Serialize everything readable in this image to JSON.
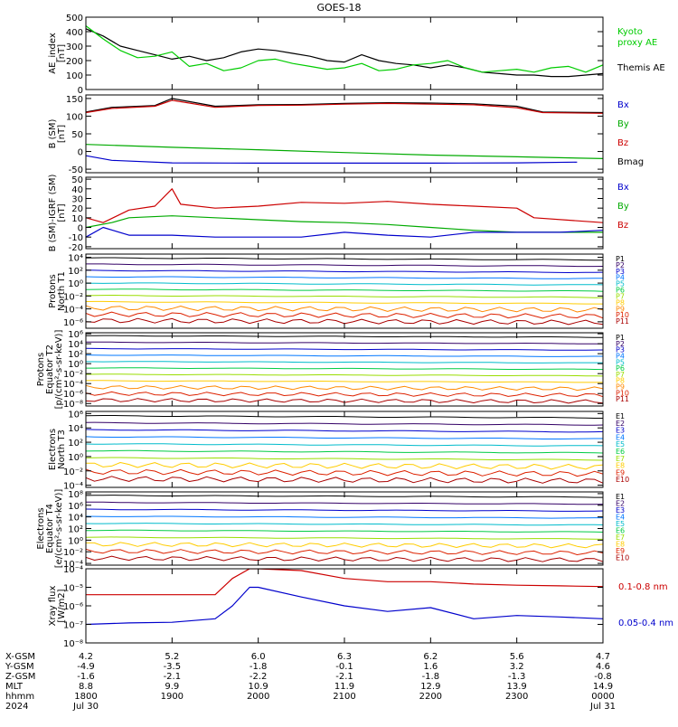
{
  "title": "GOES-18",
  "panels": [
    {
      "id": "ae",
      "ylabel": [
        "AE_index",
        "[nT]"
      ],
      "yticks": [
        "500",
        "400",
        "300",
        "200",
        "100",
        "0"
      ],
      "ymin": 0,
      "ymax": 500,
      "log": false,
      "legend": [
        {
          "text": "Kyoto",
          "color": "#00cc00"
        },
        {
          "text": "proxy AE",
          "color": "#00cc00"
        },
        {
          "text": "Themis AE",
          "color": "#000000"
        }
      ]
    },
    {
      "id": "bsm",
      "ylabel": [
        "B (SM)",
        "[nT]"
      ],
      "yticks": [
        "150",
        "100",
        "50",
        "0",
        "-50"
      ],
      "ymin": -60,
      "ymax": 160,
      "log": false,
      "legend": [
        {
          "text": "Bx",
          "color": "#0000cc"
        },
        {
          "text": "By",
          "color": "#00aa00"
        },
        {
          "text": "Bz",
          "color": "#cc0000"
        },
        {
          "text": "Bmag",
          "color": "#000000"
        }
      ]
    },
    {
      "id": "bigrf",
      "ylabel": [
        "B (SM)-IGRF (SM)",
        "[nT]"
      ],
      "yticks": [
        "50",
        "40",
        "30",
        "20",
        "10",
        "0",
        "-10",
        "-20"
      ],
      "ymin": -22,
      "ymax": 52,
      "log": false,
      "legend": [
        {
          "text": "Bx",
          "color": "#0000cc"
        },
        {
          "text": "By",
          "color": "#00aa00"
        },
        {
          "text": "Bz",
          "color": "#cc0000"
        }
      ]
    },
    {
      "id": "pn",
      "ylabel": [
        "Protons",
        "North T1"
      ],
      "yticks": [
        "10⁴",
        "10²",
        "10⁰",
        "10⁻²",
        "10⁻⁴",
        "10⁻⁶"
      ],
      "ymin": -7,
      "ymax": 4.5,
      "log": true,
      "legend": [
        {
          "text": "P1",
          "color": "#000000"
        },
        {
          "text": "P2",
          "color": "#330066"
        },
        {
          "text": "P3",
          "color": "#0000cc"
        },
        {
          "text": "P4",
          "color": "#0077ff"
        },
        {
          "text": "P5",
          "color": "#00bbcc"
        },
        {
          "text": "P6",
          "color": "#00cc44"
        },
        {
          "text": "P7",
          "color": "#99dd00"
        },
        {
          "text": "P8",
          "color": "#ffcc00"
        },
        {
          "text": "P9",
          "color": "#ff8800"
        },
        {
          "text": "P10",
          "color": "#dd2200"
        },
        {
          "text": "P11",
          "color": "#aa0000"
        }
      ]
    },
    {
      "id": "pe",
      "ylabel": [
        "Protons",
        "Equator T2",
        "[p/(cm²-s-sr-keV)]"
      ],
      "yticks": [
        "10⁶",
        "10⁴",
        "10²",
        "10⁰",
        "10⁻²",
        "10⁻⁴",
        "10⁻⁶",
        "10⁻⁸"
      ],
      "ymin": -8.5,
      "ymax": 6.2,
      "log": true,
      "legend": [
        {
          "text": "P1",
          "color": "#000000"
        },
        {
          "text": "P2",
          "color": "#330066"
        },
        {
          "text": "P3",
          "color": "#0000cc"
        },
        {
          "text": "P4",
          "color": "#0077ff"
        },
        {
          "text": "P5",
          "color": "#00bbcc"
        },
        {
          "text": "P6",
          "color": "#00cc44"
        },
        {
          "text": "P7",
          "color": "#99dd00"
        },
        {
          "text": "P8",
          "color": "#ffcc00"
        },
        {
          "text": "P9",
          "color": "#ff8800"
        },
        {
          "text": "P10",
          "color": "#dd2200"
        },
        {
          "text": "P11",
          "color": "#aa0000"
        }
      ]
    },
    {
      "id": "en",
      "ylabel": [
        "Electrons",
        "North T3"
      ],
      "yticks": [
        "10⁶",
        "10⁴",
        "10²",
        "10⁰",
        "10⁻²",
        "10⁻⁴"
      ],
      "ymin": -4.3,
      "ymax": 6.3,
      "log": true,
      "legend": [
        {
          "text": "E1",
          "color": "#000000"
        },
        {
          "text": "E2",
          "color": "#330066"
        },
        {
          "text": "E3",
          "color": "#0000cc"
        },
        {
          "text": "E4",
          "color": "#0077ff"
        },
        {
          "text": "E5",
          "color": "#00bbcc"
        },
        {
          "text": "E6",
          "color": "#00cc44"
        },
        {
          "text": "E7",
          "color": "#99dd00"
        },
        {
          "text": "E8",
          "color": "#ffcc00"
        },
        {
          "text": "E9",
          "color": "#dd2200"
        },
        {
          "text": "E10",
          "color": "#aa0000"
        }
      ]
    },
    {
      "id": "ee",
      "ylabel": [
        "Electrons",
        "Equator T4",
        "[e/(cm²-s-sr-keV)]"
      ],
      "yticks": [
        "10⁸",
        "10⁶",
        "10⁴",
        "10²",
        "10⁰",
        "10⁻²",
        "10⁻⁴"
      ],
      "ymin": -4.3,
      "ymax": 8.3,
      "log": true,
      "legend": [
        {
          "text": "E1",
          "color": "#000000"
        },
        {
          "text": "E2",
          "color": "#330066"
        },
        {
          "text": "E3",
          "color": "#0000cc"
        },
        {
          "text": "E4",
          "color": "#0077ff"
        },
        {
          "text": "E5",
          "color": "#00bbcc"
        },
        {
          "text": "E6",
          "color": "#00cc44"
        },
        {
          "text": "E7",
          "color": "#99dd00"
        },
        {
          "text": "E8",
          "color": "#ffcc00"
        },
        {
          "text": "E9",
          "color": "#dd2200"
        },
        {
          "text": "E10",
          "color": "#aa0000"
        }
      ]
    },
    {
      "id": "xray",
      "ylabel": [
        "Xray flux",
        "[W/m2]"
      ],
      "yticks": [
        "10⁻⁴",
        "10⁻⁵",
        "10⁻⁶",
        "10⁻⁷",
        "10⁻⁸"
      ],
      "ymin": -8,
      "ymax": -4,
      "log": true,
      "legend": [
        {
          "text": "0.1-0.8 nm",
          "color": "#cc0000"
        },
        {
          "text": "0.05-0.4 nm",
          "color": "#0000cc"
        }
      ]
    }
  ],
  "x_axis": {
    "row_labels": [
      "X-GSM",
      "Y-GSM",
      "Z-GSM",
      "MLT",
      "hhmm",
      "2024"
    ],
    "columns": [
      {
        "values": [
          "4.2",
          "-4.9",
          "-1.6",
          "8.8",
          "1800",
          "Jul 30"
        ]
      },
      {
        "values": [
          "5.2",
          "-3.5",
          "-2.1",
          "9.9",
          "1900",
          ""
        ]
      },
      {
        "values": [
          "6.0",
          "-1.8",
          "-2.2",
          "10.9",
          "2000",
          ""
        ]
      },
      {
        "values": [
          "6.3",
          "-0.1",
          "-2.1",
          "11.9",
          "2100",
          ""
        ]
      },
      {
        "values": [
          "6.2",
          "1.6",
          "-1.8",
          "12.9",
          "2200",
          ""
        ]
      },
      {
        "values": [
          "5.6",
          "3.2",
          "-1.3",
          "13.9",
          "2300",
          ""
        ]
      },
      {
        "values": [
          "4.7",
          "4.6",
          "-0.8",
          "14.9",
          "0000",
          "Jul 31"
        ]
      }
    ]
  },
  "chart_data": {
    "type": "line",
    "title": "GOES-18",
    "x_unit": "UT hours, 2024 Jul 30",
    "x_range": [
      18,
      24
    ],
    "panels": [
      {
        "name": "AE index [nT]",
        "series": [
          {
            "name": "Themis AE",
            "color": "#000000",
            "x": [
              18.0,
              18.2,
              18.4,
              18.6,
              18.8,
              19.0,
              19.2,
              19.4,
              19.6,
              19.8,
              20.0,
              20.2,
              20.4,
              20.6,
              20.8,
              21.0,
              21.2,
              21.4,
              21.6,
              21.8,
              22.0,
              22.2,
              22.4,
              22.6,
              22.8,
              23.0,
              23.2,
              23.4,
              23.6,
              23.8,
              24.0
            ],
            "y": [
              420,
              370,
              300,
              270,
              240,
              210,
              230,
              200,
              220,
              260,
              280,
              270,
              250,
              230,
              200,
              190,
              240,
              200,
              180,
              170,
              150,
              170,
              150,
              120,
              110,
              100,
              100,
              90,
              90,
              100,
              110
            ]
          },
          {
            "name": "Kyoto proxy AE",
            "color": "#00cc00",
            "x": [
              18.0,
              18.2,
              18.4,
              18.6,
              18.8,
              19.0,
              19.2,
              19.4,
              19.6,
              19.8,
              20.0,
              20.2,
              20.4,
              20.6,
              20.8,
              21.0,
              21.2,
              21.4,
              21.6,
              21.8,
              22.0,
              22.2,
              22.4,
              22.6,
              22.8,
              23.0,
              23.2,
              23.4,
              23.6,
              23.8,
              24.0
            ],
            "y": [
              440,
              350,
              270,
              220,
              230,
              260,
              160,
              180,
              130,
              150,
              200,
              210,
              180,
              160,
              140,
              150,
              180,
              130,
              140,
              170,
              180,
              200,
              150,
              120,
              130,
              140,
              120,
              150,
              160,
              120,
              170
            ]
          }
        ]
      },
      {
        "name": "B (SM) [nT]",
        "series": [
          {
            "name": "Bmag",
            "color": "#000000",
            "x": [
              18.0,
              18.3,
              18.8,
              19.0,
              19.5,
              20.0,
              20.5,
              21.0,
              21.5,
              22.0,
              22.5,
              23.0,
              23.3,
              24.0
            ],
            "y": [
              112,
              125,
              130,
              150,
              128,
              132,
              133,
              136,
              138,
              137,
              135,
              128,
              112,
              110
            ]
          },
          {
            "name": "Bz",
            "color": "#cc0000",
            "x": [
              18.0,
              18.3,
              18.8,
              19.0,
              19.5,
              20.0,
              20.5,
              21.0,
              21.5,
              22.0,
              22.5,
              23.0,
              23.3,
              24.0
            ],
            "y": [
              110,
              122,
              128,
              145,
              125,
              130,
              131,
              134,
              136,
              134,
              132,
              124,
              110,
              108
            ]
          },
          {
            "name": "By",
            "color": "#00aa00",
            "x": [
              18.0,
              19.0,
              20.0,
              21.0,
              22.0,
              23.0,
              24.0
            ],
            "y": [
              20,
              12,
              5,
              -3,
              -10,
              -15,
              -20
            ]
          },
          {
            "name": "Bx",
            "color": "#0000cc",
            "x": [
              18.0,
              18.3,
              19.0,
              20.0,
              21.0,
              22.0,
              23.0,
              23.7
            ],
            "y": [
              -12,
              -25,
              -32,
              -33,
              -33,
              -33,
              -32,
              -30
            ]
          }
        ]
      },
      {
        "name": "B (SM)-IGRF (SM) [nT]",
        "series": [
          {
            "name": "Bz",
            "color": "#cc0000",
            "x": [
              18.0,
              18.2,
              18.5,
              18.8,
              19.0,
              19.1,
              19.5,
              20.0,
              20.5,
              21.0,
              21.5,
              22.0,
              22.5,
              23.0,
              23.2,
              24.0
            ],
            "y": [
              10,
              5,
              18,
              22,
              40,
              24,
              20,
              22,
              26,
              25,
              27,
              24,
              22,
              20,
              10,
              5
            ]
          },
          {
            "name": "By",
            "color": "#00aa00",
            "x": [
              18.0,
              18.3,
              18.5,
              19.0,
              19.5,
              20.0,
              20.5,
              21.0,
              21.5,
              22.0,
              22.5,
              23.0,
              23.5,
              24.0
            ],
            "y": [
              0,
              5,
              10,
              12,
              10,
              8,
              6,
              5,
              3,
              0,
              -3,
              -5,
              -5,
              -5
            ]
          },
          {
            "name": "Bx",
            "color": "#0000cc",
            "x": [
              18.0,
              18.2,
              18.5,
              19.0,
              19.5,
              20.0,
              20.5,
              21.0,
              21.5,
              22.0,
              22.5,
              23.0,
              23.5,
              24.0
            ],
            "y": [
              -10,
              0,
              -8,
              -8,
              -10,
              -10,
              -10,
              -5,
              -8,
              -10,
              -5,
              -5,
              -5,
              -3
            ]
          }
        ]
      },
      {
        "name": "Xray flux [W/m2]",
        "series": [
          {
            "name": "0.1-0.8 nm",
            "color": "#cc0000",
            "x": [
              18.0,
              18.5,
              19.0,
              19.5,
              19.7,
              19.9,
              20.0,
              20.5,
              21.0,
              21.5,
              22.0,
              22.5,
              23.0,
              23.5,
              24.0
            ],
            "y": [
              4e-06,
              4e-06,
              4e-06,
              4e-06,
              3e-05,
              0.0001,
              0.0001,
              8e-05,
              3e-05,
              2e-05,
              2e-05,
              1.5e-05,
              1.3e-05,
              1.2e-05,
              1.1e-05
            ]
          },
          {
            "name": "0.05-0.4 nm",
            "color": "#0000cc",
            "x": [
              18.0,
              18.5,
              19.0,
              19.5,
              19.7,
              19.9,
              20.0,
              20.5,
              21.0,
              21.5,
              22.0,
              22.5,
              23.0,
              23.5,
              24.0
            ],
            "y": [
              1e-07,
              1.2e-07,
              1.3e-07,
              2e-07,
              1e-06,
              1e-05,
              1e-05,
              3e-06,
              1e-06,
              5e-07,
              8e-07,
              2e-07,
              3e-07,
              2.5e-07,
              2e-07
            ]
          }
        ]
      }
    ]
  }
}
